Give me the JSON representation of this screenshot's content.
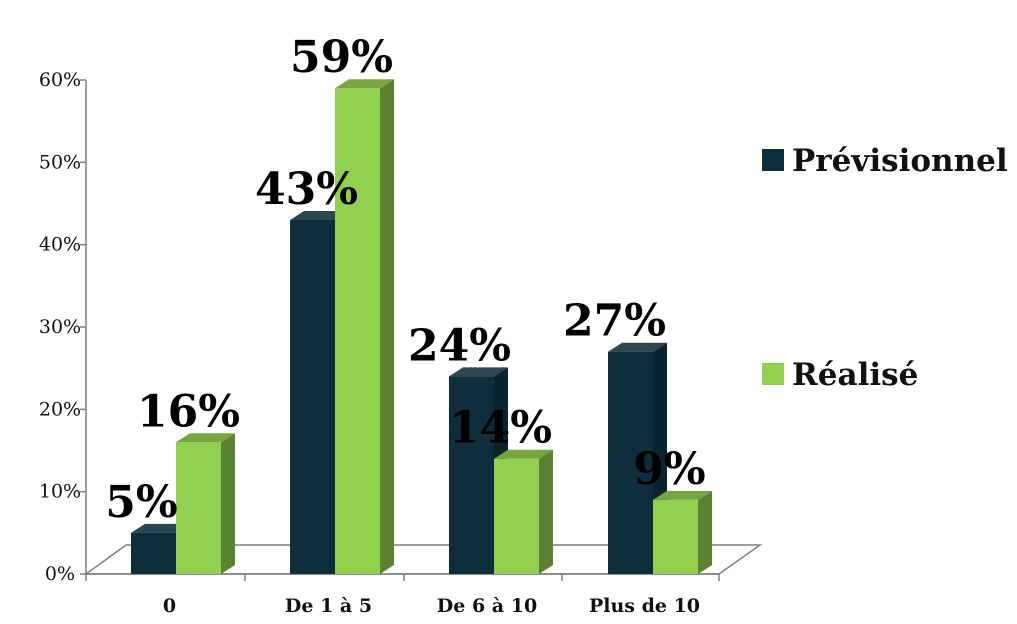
{
  "chart_data": {
    "type": "bar",
    "categories": [
      "0",
      "De 1 à 5",
      "De 6 à 10",
      "Plus de 10"
    ],
    "series": [
      {
        "name": "Prévisionnel",
        "values": [
          5,
          43,
          24,
          27
        ],
        "labels": [
          "5%",
          "43%",
          "24%",
          "27%"
        ],
        "color": "#0d2e3a"
      },
      {
        "name": "Réalisé",
        "values": [
          16,
          59,
          14,
          9
        ],
        "labels": [
          "16%",
          "59%",
          "14%",
          "9%"
        ],
        "color": "#92d050"
      }
    ],
    "y_ticks": [
      "0%",
      "10%",
      "20%",
      "30%",
      "40%",
      "50%",
      "60%"
    ],
    "ylim": [
      0,
      60
    ],
    "legend_position": "right",
    "style": "3d-clustered-column"
  }
}
